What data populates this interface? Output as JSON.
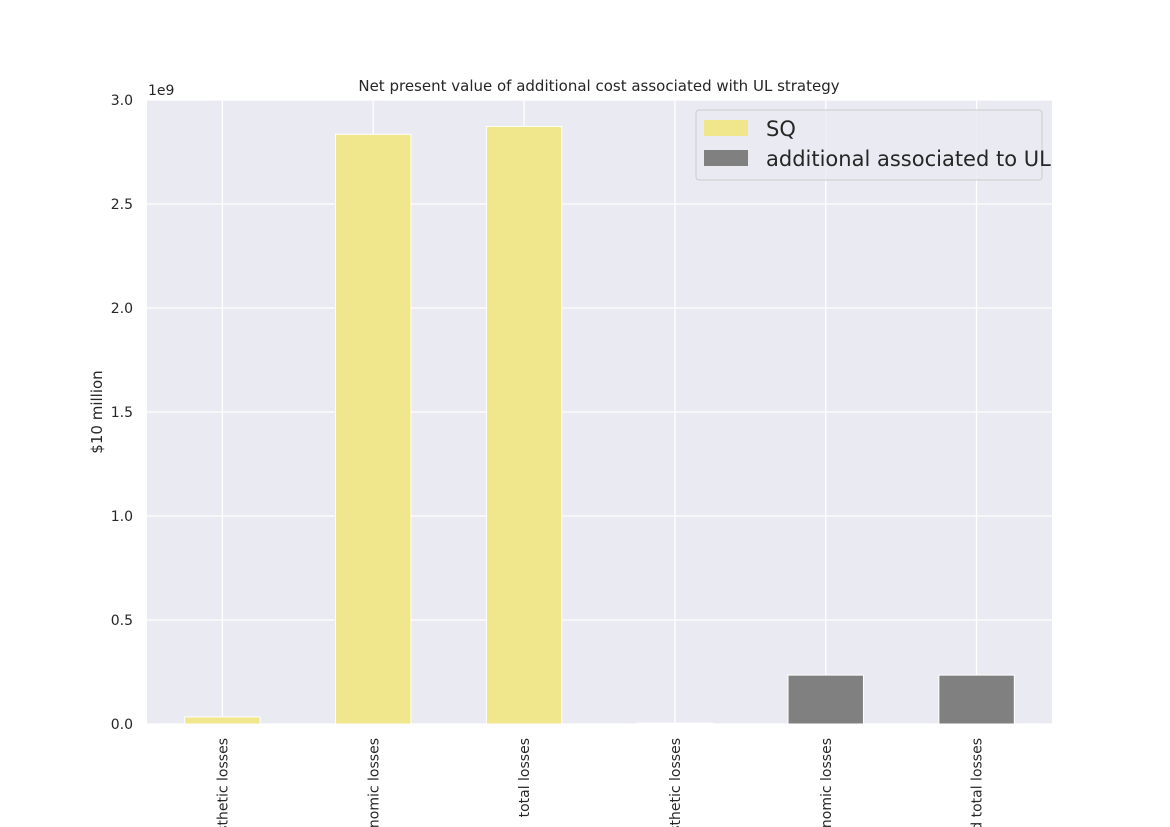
{
  "chart_data": {
    "type": "bar",
    "title": "Net present value of additional cost associated with UL strategy",
    "xlabel": "",
    "ylabel": "$10 million",
    "y_offset_label": "1e9",
    "ylim": [
      0,
      3.0
    ],
    "y_ticks": [
      "0.0",
      "0.5",
      "1.0",
      "1.5",
      "2.0",
      "2.5",
      "3.0"
    ],
    "categories": [
      "sthetic losses",
      "nomic losses",
      "total losses",
      "sthetic losses",
      "nomic losses",
      "d total losses"
    ],
    "series": [
      {
        "name": "SQ",
        "color": "#f0e68c",
        "values": [
          0.034,
          2.835,
          2.873,
          null,
          null,
          null
        ]
      },
      {
        "name": "additional associated to UL",
        "color": "#808080",
        "values": [
          null,
          null,
          null,
          0.004,
          0.235,
          0.235
        ]
      }
    ],
    "grid": true,
    "legend_position": "top-right",
    "background": "#eaeaf2"
  }
}
